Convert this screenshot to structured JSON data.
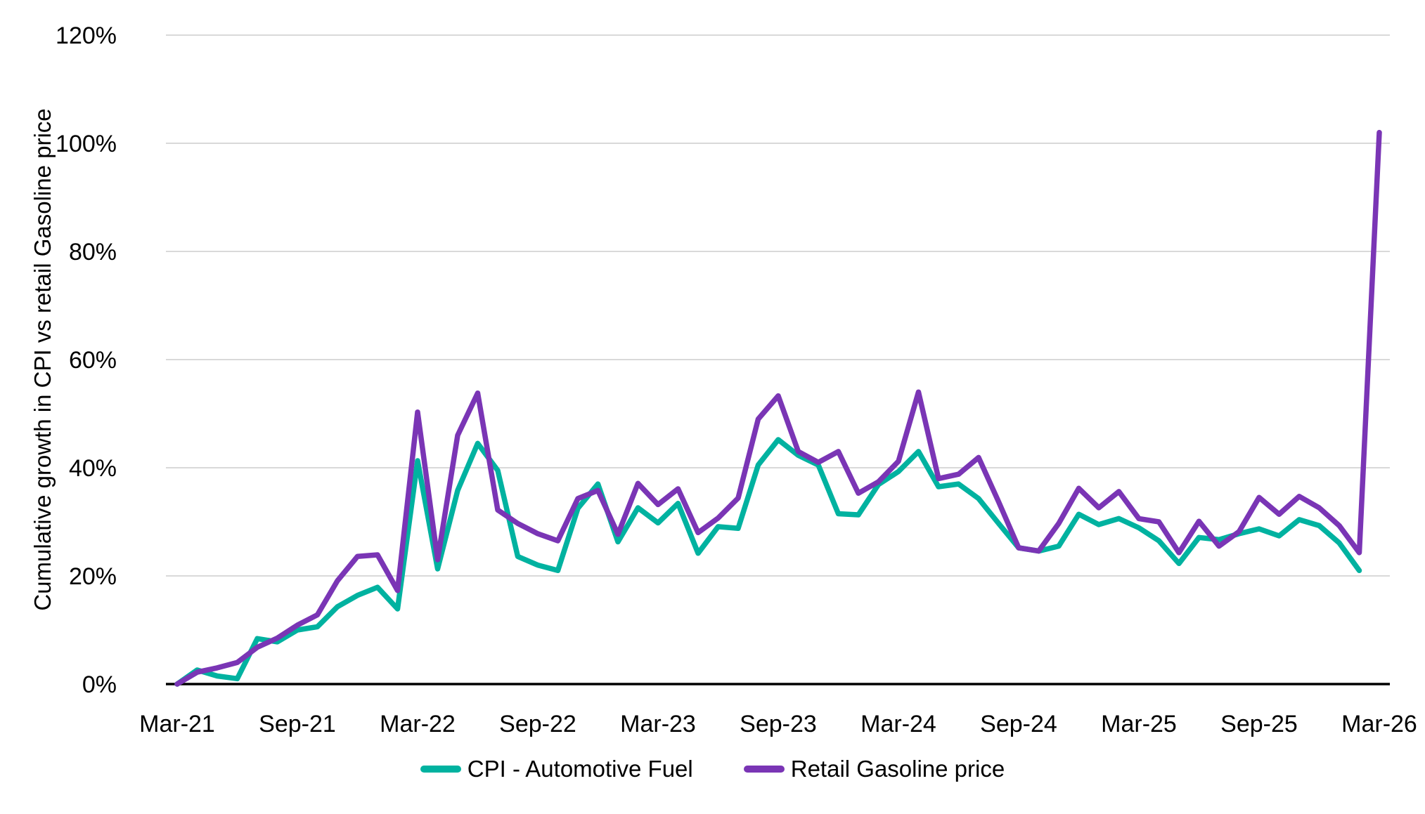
{
  "chart_data": {
    "type": "line",
    "title": "",
    "xlabel": "",
    "ylabel": "Cumulative growth in CPI vs retail Gasoline price",
    "ylim": [
      0,
      120
    ],
    "ytick_step": 20,
    "ytick_suffix": "%",
    "grid": true,
    "legend_position": "bottom",
    "x_tick_every": 6,
    "x_labels": [
      "Mar-21",
      "Apr-21",
      "May-21",
      "Jun-21",
      "Jul-21",
      "Aug-21",
      "Sep-21",
      "Oct-21",
      "Nov-21",
      "Dec-21",
      "Jan-22",
      "Feb-22",
      "Mar-22",
      "Apr-22",
      "May-22",
      "Jun-22",
      "Jul-22",
      "Aug-22",
      "Sep-22",
      "Oct-22",
      "Nov-22",
      "Dec-22",
      "Jan-23",
      "Feb-23",
      "Mar-23",
      "Apr-23",
      "May-23",
      "Jun-23",
      "Jul-23",
      "Aug-23",
      "Sep-23",
      "Oct-23",
      "Nov-23",
      "Dec-23",
      "Jan-24",
      "Feb-24",
      "Mar-24",
      "Apr-24",
      "May-24",
      "Jun-24",
      "Jul-24",
      "Aug-24",
      "Sep-24",
      "Oct-24",
      "Nov-24",
      "Dec-24",
      "Jan-25",
      "Feb-25",
      "Mar-25",
      "Apr-25",
      "May-25",
      "Jun-25",
      "Jul-25",
      "Aug-25",
      "Sep-25",
      "Oct-25",
      "Nov-25",
      "Dec-25",
      "Jan-26",
      "Feb-26",
      "Mar-26"
    ],
    "x_tick_labels": [
      "Mar-21",
      "Sep-21",
      "Mar-22",
      "Sep-22",
      "Mar-23",
      "Sep-23",
      "Mar-24",
      "Sep-24",
      "Mar-25",
      "Sep-25",
      "Mar-26"
    ],
    "series": [
      {
        "name": "CPI - Automotive Fuel",
        "color": "#00B2A0",
        "values": [
          0,
          2.6,
          1.5,
          1.0,
          8.4,
          7.8,
          10.0,
          10.6,
          14.3,
          16.4,
          17.9,
          13.9,
          41.3,
          21.3,
          35.8,
          44.5,
          39.5,
          23.6,
          22.0,
          21.0,
          32.5,
          37.0,
          26.3,
          32.6,
          29.8,
          33.4,
          24.2,
          29.1,
          28.8,
          40.5,
          45.2,
          42.3,
          40.5,
          31.5,
          31.3,
          36.9,
          39.3,
          43.0,
          36.5,
          37.0,
          34.3,
          29.7,
          25.2,
          24.6,
          25.5,
          31.4,
          29.5,
          30.6,
          28.9,
          26.5,
          22.3,
          27.1,
          26.7,
          27.8,
          28.7,
          27.4,
          30.4,
          29.3,
          26.1,
          21.0
        ]
      },
      {
        "name": "Retail Gasoline price",
        "color": "#7A35B5",
        "values": [
          0,
          2.2,
          3.0,
          4.0,
          6.8,
          8.5,
          10.9,
          12.8,
          19.1,
          23.6,
          23.9,
          17.3,
          50.3,
          23.0,
          46.0,
          53.8,
          32.2,
          29.7,
          27.8,
          26.5,
          34.3,
          35.8,
          27.7,
          37.1,
          33.2,
          36.1,
          28.0,
          30.7,
          34.4,
          49.0,
          53.3,
          43.0,
          41.0,
          43.0,
          35.3,
          37.4,
          41.2,
          54.0,
          38.0,
          38.8,
          41.9,
          33.7,
          25.2,
          24.6,
          29.7,
          36.2,
          32.6,
          35.6,
          30.6,
          30.0,
          24.3,
          30.1,
          25.5,
          28.2,
          34.5,
          31.4,
          34.7,
          32.6,
          29.3,
          24.3,
          102.0
        ]
      }
    ],
    "colors": {
      "gridline": "#D9D9D9",
      "axis_line": "#000000",
      "text": "#000000",
      "background": "#FFFFFF"
    }
  }
}
